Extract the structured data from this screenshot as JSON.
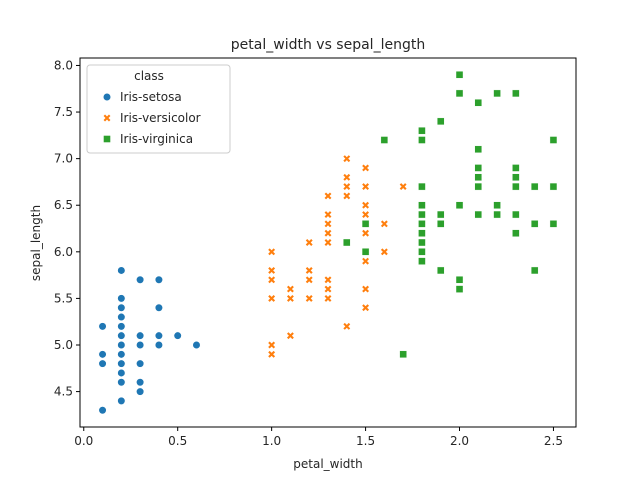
{
  "chart_data": {
    "type": "scatter",
    "title": "petal_width vs sepal_length",
    "xlabel": "petal_width",
    "ylabel": "sepal_length",
    "xlim": [
      -0.02,
      2.62
    ],
    "ylim": [
      4.12,
      8.08
    ],
    "xticks": [
      0.0,
      0.5,
      1.0,
      1.5,
      2.0,
      2.5
    ],
    "xtick_labels": [
      "0.0",
      "0.5",
      "1.0",
      "1.5",
      "2.0",
      "2.5"
    ],
    "yticks": [
      4.5,
      5.0,
      5.5,
      6.0,
      6.5,
      7.0,
      7.5,
      8.0
    ],
    "ytick_labels": [
      "4.5",
      "5.0",
      "5.5",
      "6.0",
      "6.5",
      "7.0",
      "7.5",
      "8.0"
    ],
    "grid": false,
    "legend": {
      "title": "class",
      "placement": "top-left"
    },
    "series": [
      {
        "name": "Iris-setosa",
        "marker": "circle",
        "color": "#1f77b4",
        "points": [
          [
            0.1,
            4.3
          ],
          [
            0.1,
            4.8
          ],
          [
            0.1,
            4.9
          ],
          [
            0.1,
            5.2
          ],
          [
            0.2,
            4.4
          ],
          [
            0.2,
            4.6
          ],
          [
            0.2,
            4.7
          ],
          [
            0.2,
            4.8
          ],
          [
            0.2,
            4.9
          ],
          [
            0.2,
            5.0
          ],
          [
            0.2,
            5.1
          ],
          [
            0.2,
            5.2
          ],
          [
            0.2,
            5.3
          ],
          [
            0.2,
            5.4
          ],
          [
            0.2,
            5.5
          ],
          [
            0.2,
            5.8
          ],
          [
            0.3,
            4.5
          ],
          [
            0.3,
            4.6
          ],
          [
            0.3,
            4.8
          ],
          [
            0.3,
            5.0
          ],
          [
            0.3,
            5.1
          ],
          [
            0.3,
            5.7
          ],
          [
            0.4,
            5.0
          ],
          [
            0.4,
            5.1
          ],
          [
            0.4,
            5.4
          ],
          [
            0.4,
            5.7
          ],
          [
            0.5,
            5.1
          ],
          [
            0.6,
            5.0
          ]
        ]
      },
      {
        "name": "Iris-versicolor",
        "marker": "x",
        "color": "#ff7f0e",
        "points": [
          [
            1.0,
            4.9
          ],
          [
            1.0,
            5.0
          ],
          [
            1.0,
            5.5
          ],
          [
            1.0,
            5.7
          ],
          [
            1.0,
            5.8
          ],
          [
            1.0,
            6.0
          ],
          [
            1.1,
            5.1
          ],
          [
            1.1,
            5.5
          ],
          [
            1.1,
            5.6
          ],
          [
            1.2,
            5.5
          ],
          [
            1.2,
            5.7
          ],
          [
            1.2,
            5.8
          ],
          [
            1.2,
            6.1
          ],
          [
            1.3,
            5.5
          ],
          [
            1.3,
            5.6
          ],
          [
            1.3,
            5.7
          ],
          [
            1.3,
            6.1
          ],
          [
            1.3,
            6.2
          ],
          [
            1.3,
            6.3
          ],
          [
            1.3,
            6.4
          ],
          [
            1.3,
            6.6
          ],
          [
            1.4,
            5.2
          ],
          [
            1.4,
            6.1
          ],
          [
            1.4,
            6.6
          ],
          [
            1.4,
            6.7
          ],
          [
            1.4,
            6.8
          ],
          [
            1.4,
            7.0
          ],
          [
            1.5,
            5.4
          ],
          [
            1.5,
            5.6
          ],
          [
            1.5,
            5.9
          ],
          [
            1.5,
            6.0
          ],
          [
            1.5,
            6.2
          ],
          [
            1.5,
            6.3
          ],
          [
            1.5,
            6.4
          ],
          [
            1.5,
            6.5
          ],
          [
            1.5,
            6.7
          ],
          [
            1.5,
            6.9
          ],
          [
            1.6,
            6.0
          ],
          [
            1.6,
            6.3
          ],
          [
            1.7,
            6.7
          ]
        ]
      },
      {
        "name": "Iris-virginica",
        "marker": "square",
        "color": "#2ca02c",
        "points": [
          [
            1.4,
            6.1
          ],
          [
            1.5,
            6.0
          ],
          [
            1.5,
            6.3
          ],
          [
            1.6,
            7.2
          ],
          [
            1.7,
            4.9
          ],
          [
            1.8,
            5.9
          ],
          [
            1.8,
            6.0
          ],
          [
            1.8,
            6.1
          ],
          [
            1.8,
            6.2
          ],
          [
            1.8,
            6.3
          ],
          [
            1.8,
            6.4
          ],
          [
            1.8,
            6.5
          ],
          [
            1.8,
            6.7
          ],
          [
            1.8,
            7.2
          ],
          [
            1.8,
            7.3
          ],
          [
            1.9,
            5.8
          ],
          [
            1.9,
            6.3
          ],
          [
            1.9,
            6.4
          ],
          [
            1.9,
            7.4
          ],
          [
            2.0,
            5.6
          ],
          [
            2.0,
            5.7
          ],
          [
            2.0,
            6.5
          ],
          [
            2.0,
            7.7
          ],
          [
            2.0,
            7.9
          ],
          [
            2.1,
            6.4
          ],
          [
            2.1,
            6.7
          ],
          [
            2.1,
            6.8
          ],
          [
            2.1,
            6.9
          ],
          [
            2.1,
            7.1
          ],
          [
            2.1,
            7.6
          ],
          [
            2.2,
            6.4
          ],
          [
            2.2,
            6.5
          ],
          [
            2.2,
            7.7
          ],
          [
            2.3,
            6.2
          ],
          [
            2.3,
            6.4
          ],
          [
            2.3,
            6.7
          ],
          [
            2.3,
            6.8
          ],
          [
            2.3,
            6.9
          ],
          [
            2.3,
            7.7
          ],
          [
            2.4,
            5.8
          ],
          [
            2.4,
            6.3
          ],
          [
            2.4,
            6.7
          ],
          [
            2.5,
            6.3
          ],
          [
            2.5,
            6.7
          ],
          [
            2.5,
            7.2
          ]
        ]
      }
    ]
  }
}
